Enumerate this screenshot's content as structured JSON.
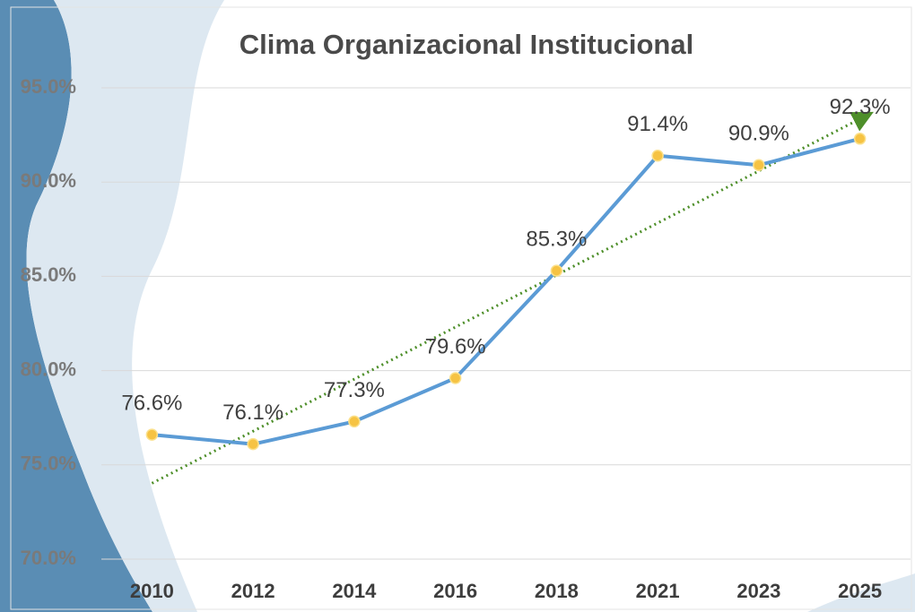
{
  "chart_data": {
    "type": "line",
    "title": "Clima Organizacional Institucional",
    "categories": [
      "2010",
      "2012",
      "2014",
      "2016",
      "2018",
      "2021",
      "2023",
      "2025"
    ],
    "series": [
      {
        "color": "#5b9bd5",
        "marker_color": "#f6c343",
        "values": [
          76.6,
          76.1,
          77.3,
          79.6,
          85.3,
          91.4,
          90.9,
          92.3
        ],
        "value_labels": [
          "76.6%",
          "76.1%",
          "77.3%",
          "79.6%",
          "85.3%",
          "91.4%",
          "90.9%",
          "92.3%"
        ]
      }
    ],
    "trendline": {
      "type": "linear",
      "color": "#4e8f2a"
    },
    "ylim": [
      70,
      95
    ],
    "yticks": [
      {
        "value": 70,
        "label": "70.0%"
      },
      {
        "value": 75,
        "label": "75.0%"
      },
      {
        "value": 80,
        "label": "80.0%"
      },
      {
        "value": 85,
        "label": "85.0%"
      },
      {
        "value": 90,
        "label": "90.0%"
      },
      {
        "value": 95,
        "label": "95.0%"
      }
    ],
    "grid": true
  }
}
